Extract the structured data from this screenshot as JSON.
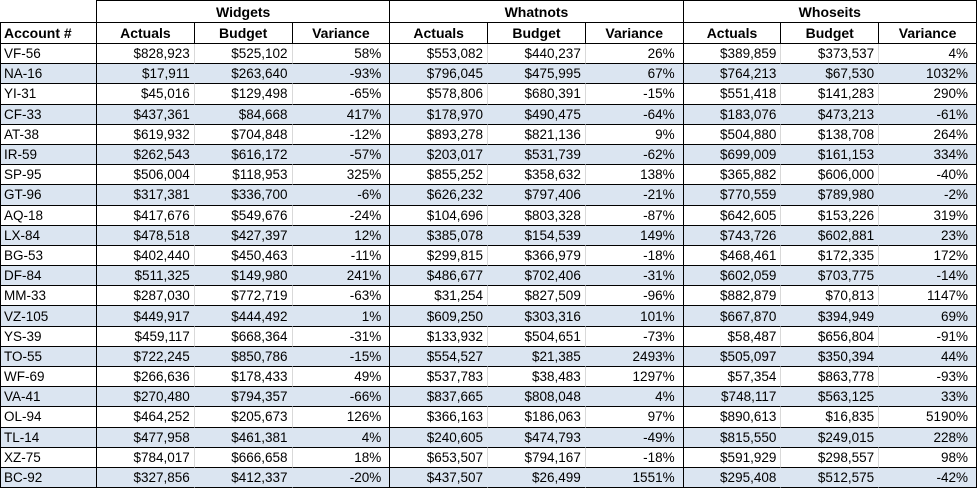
{
  "chart_data": {
    "type": "table",
    "account_header": "Account #",
    "groups": [
      "Widgets",
      "Whatnots",
      "Whoseits"
    ],
    "sub_headers": [
      "Actuals",
      "Budget",
      "Variance"
    ],
    "rows": [
      {
        "account": "VF-56",
        "values": [
          "$828,923",
          "$525,102",
          "58%",
          "$553,082",
          "$440,237",
          "26%",
          "$389,859",
          "$373,537",
          "4%"
        ]
      },
      {
        "account": "NA-16",
        "values": [
          "$17,911",
          "$263,640",
          "-93%",
          "$796,045",
          "$475,995",
          "67%",
          "$764,213",
          "$67,530",
          "1032%"
        ]
      },
      {
        "account": "YI-31",
        "values": [
          "$45,016",
          "$129,498",
          "-65%",
          "$578,806",
          "$680,391",
          "-15%",
          "$551,418",
          "$141,283",
          "290%"
        ]
      },
      {
        "account": "CF-33",
        "values": [
          "$437,361",
          "$84,668",
          "417%",
          "$178,970",
          "$490,475",
          "-64%",
          "$183,076",
          "$473,213",
          "-61%"
        ]
      },
      {
        "account": "AT-38",
        "values": [
          "$619,932",
          "$704,848",
          "-12%",
          "$893,278",
          "$821,136",
          "9%",
          "$504,880",
          "$138,708",
          "264%"
        ]
      },
      {
        "account": "IR-59",
        "values": [
          "$262,543",
          "$616,172",
          "-57%",
          "$203,017",
          "$531,739",
          "-62%",
          "$699,009",
          "$161,153",
          "334%"
        ]
      },
      {
        "account": "SP-95",
        "values": [
          "$506,004",
          "$118,953",
          "325%",
          "$855,252",
          "$358,632",
          "138%",
          "$365,882",
          "$606,000",
          "-40%"
        ]
      },
      {
        "account": "GT-96",
        "values": [
          "$317,381",
          "$336,700",
          "-6%",
          "$626,232",
          "$797,406",
          "-21%",
          "$770,559",
          "$789,980",
          "-2%"
        ]
      },
      {
        "account": "AQ-18",
        "values": [
          "$417,676",
          "$549,676",
          "-24%",
          "$104,696",
          "$803,328",
          "-87%",
          "$642,605",
          "$153,226",
          "319%"
        ]
      },
      {
        "account": "LX-84",
        "values": [
          "$478,518",
          "$427,397",
          "12%",
          "$385,078",
          "$154,539",
          "149%",
          "$743,726",
          "$602,881",
          "23%"
        ]
      },
      {
        "account": "BG-53",
        "values": [
          "$402,440",
          "$450,463",
          "-11%",
          "$299,815",
          "$366,979",
          "-18%",
          "$468,461",
          "$172,335",
          "172%"
        ]
      },
      {
        "account": "DF-84",
        "values": [
          "$511,325",
          "$149,980",
          "241%",
          "$486,677",
          "$702,406",
          "-31%",
          "$602,059",
          "$703,775",
          "-14%"
        ]
      },
      {
        "account": "MM-33",
        "values": [
          "$287,030",
          "$772,719",
          "-63%",
          "$31,254",
          "$827,509",
          "-96%",
          "$882,879",
          "$70,813",
          "1147%"
        ]
      },
      {
        "account": "VZ-105",
        "values": [
          "$449,917",
          "$444,492",
          "1%",
          "$609,250",
          "$303,316",
          "101%",
          "$667,870",
          "$394,949",
          "69%"
        ]
      },
      {
        "account": "YS-39",
        "values": [
          "$459,117",
          "$668,364",
          "-31%",
          "$133,932",
          "$504,651",
          "-73%",
          "$58,487",
          "$656,804",
          "-91%"
        ]
      },
      {
        "account": "TO-55",
        "values": [
          "$722,245",
          "$850,786",
          "-15%",
          "$554,527",
          "$21,385",
          "2493%",
          "$505,097",
          "$350,394",
          "44%"
        ]
      },
      {
        "account": "WF-69",
        "values": [
          "$266,636",
          "$178,433",
          "49%",
          "$537,783",
          "$38,483",
          "1297%",
          "$57,354",
          "$863,778",
          "-93%"
        ]
      },
      {
        "account": "VA-41",
        "values": [
          "$270,480",
          "$794,357",
          "-66%",
          "$837,665",
          "$808,048",
          "4%",
          "$748,117",
          "$563,125",
          "33%"
        ]
      },
      {
        "account": "OL-94",
        "values": [
          "$464,252",
          "$205,673",
          "126%",
          "$366,163",
          "$186,063",
          "97%",
          "$890,613",
          "$16,835",
          "5190%"
        ]
      },
      {
        "account": "TL-14",
        "values": [
          "$477,958",
          "$461,381",
          "4%",
          "$240,605",
          "$474,793",
          "-49%",
          "$815,550",
          "$249,015",
          "228%"
        ]
      },
      {
        "account": "XZ-75",
        "values": [
          "$784,017",
          "$666,658",
          "18%",
          "$653,507",
          "$794,167",
          "-18%",
          "$591,929",
          "$298,557",
          "98%"
        ]
      },
      {
        "account": "BC-92",
        "values": [
          "$327,856",
          "$412,337",
          "-20%",
          "$437,507",
          "$26,499",
          "1551%",
          "$295,408",
          "$512,575",
          "-42%"
        ]
      }
    ]
  },
  "style": {
    "band_color": "#dbe5f1",
    "grid_dark": "#000000",
    "grid_light": "#d9d9d9"
  }
}
